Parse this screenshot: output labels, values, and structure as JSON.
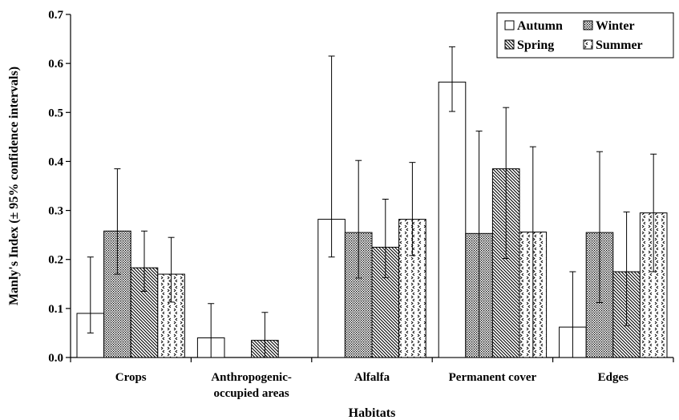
{
  "chart_data": {
    "type": "bar",
    "title": "",
    "xlabel": "Habitats",
    "ylabel": "Manly's Index (± 95% confidence intervals)",
    "ylim": [
      0,
      0.7
    ],
    "yticks": [
      "0.0",
      "0.1",
      "0.2",
      "0.3",
      "0.4",
      "0.5",
      "0.6",
      "0.7"
    ],
    "grid": false,
    "legend_position": "top-right",
    "categories": [
      {
        "lines": [
          "Crops"
        ]
      },
      {
        "lines": [
          "Anthropogenic-",
          "occupied areas"
        ]
      },
      {
        "lines": [
          "Alfalfa"
        ]
      },
      {
        "lines": [
          "Permanent cover"
        ]
      },
      {
        "lines": [
          "Edges"
        ]
      }
    ],
    "series": [
      {
        "name": "Autumn",
        "pattern": "plain",
        "values": [
          0.09,
          0.04,
          0.282,
          0.562,
          0.062
        ],
        "ci_low": [
          0.05,
          0.0,
          0.205,
          0.502,
          0.0
        ],
        "ci_high": [
          0.205,
          0.11,
          0.615,
          0.634,
          0.175
        ]
      },
      {
        "name": "Winter",
        "pattern": "dots",
        "values": [
          0.258,
          null,
          0.255,
          0.253,
          0.255
        ],
        "ci_low": [
          0.17,
          null,
          0.162,
          0.0,
          0.112
        ],
        "ci_high": [
          0.385,
          null,
          0.402,
          0.462,
          0.42
        ]
      },
      {
        "name": "Spring",
        "pattern": "hatch",
        "values": [
          0.183,
          0.035,
          0.225,
          0.385,
          0.175
        ],
        "ci_low": [
          0.135,
          0.0,
          0.163,
          0.202,
          0.065
        ],
        "ci_high": [
          0.258,
          0.092,
          0.323,
          0.51,
          0.297
        ]
      },
      {
        "name": "Summer",
        "pattern": "chevron",
        "values": [
          0.17,
          null,
          0.282,
          0.256,
          0.295
        ],
        "ci_low": [
          0.113,
          null,
          0.208,
          0.0,
          0.175
        ],
        "ci_high": [
          0.245,
          null,
          0.398,
          0.43,
          0.415
        ]
      }
    ]
  }
}
